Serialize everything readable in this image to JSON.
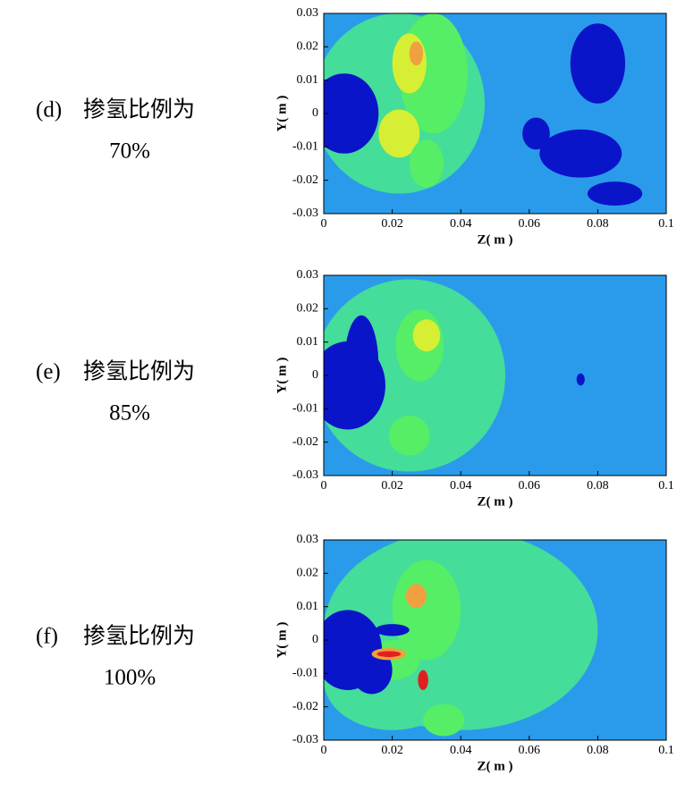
{
  "chart_data": [
    {
      "type": "contour",
      "panel": "(d)",
      "title": "掺氢比例为",
      "subtitle": "70%",
      "x_label": "Z( m )",
      "y_label": "Y( m )",
      "xlim": [
        0,
        0.1
      ],
      "xticks": [
        0,
        0.02,
        0.04,
        0.06,
        0.08,
        0.1
      ],
      "ylim": [
        -0.03,
        0.03
      ],
      "yticks": [
        -0.03,
        -0.02,
        -0.01,
        0,
        0.01,
        0.02,
        0.03
      ]
    },
    {
      "type": "contour",
      "panel": "(e)",
      "title": "掺氢比例为",
      "subtitle": "85%",
      "x_label": "Z( m )",
      "y_label": "Y( m )",
      "xlim": [
        0,
        0.1
      ],
      "xticks": [
        0,
        0.02,
        0.04,
        0.06,
        0.08,
        0.1
      ],
      "ylim": [
        -0.03,
        0.03
      ],
      "yticks": [
        -0.03,
        -0.02,
        -0.01,
        0,
        0.01,
        0.02,
        0.03
      ]
    },
    {
      "type": "contour",
      "panel": "(f)",
      "title": "掺氢比例为",
      "subtitle": "100%",
      "x_label": "Z( m )",
      "y_label": "Y( m )",
      "xlim": [
        0,
        0.1
      ],
      "xticks": [
        0,
        0.02,
        0.04,
        0.06,
        0.08,
        0.1
      ],
      "ylim": [
        -0.03,
        0.03
      ],
      "yticks": [
        -0.03,
        -0.02,
        -0.01,
        0,
        0.01,
        0.02,
        0.03
      ]
    }
  ]
}
